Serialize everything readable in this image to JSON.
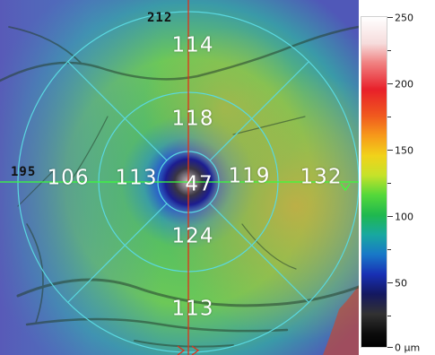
{
  "map": {
    "frame_labels": {
      "top": "212",
      "left": "195"
    },
    "sectors": {
      "center": "47",
      "inner_superior": "118",
      "inner_temporal": "113",
      "inner_inferior": "124",
      "inner_nasal": "119",
      "outer_superior": "114",
      "outer_temporal": "106",
      "outer_inferior": "113",
      "outer_nasal": "132"
    }
  },
  "colorbar": {
    "ticks": [
      "250",
      "200",
      "150",
      "100",
      "50",
      "0 µm"
    ]
  }
}
